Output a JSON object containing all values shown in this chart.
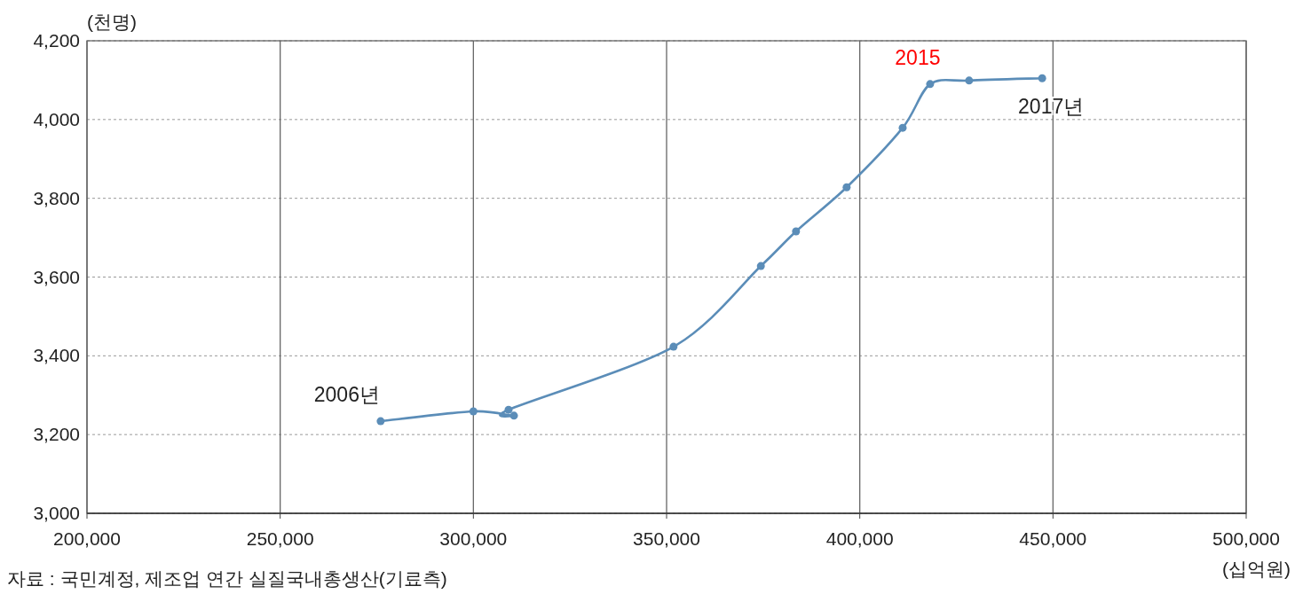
{
  "chart_data": {
    "type": "line",
    "ylabel": "(천명)",
    "xlabel": "(십억원)",
    "x": [
      276000,
      300000,
      310500,
      309100,
      351800,
      374400,
      383500,
      396600,
      411100,
      418200,
      428300,
      447200
    ],
    "series": [
      {
        "color": "#5b8db8",
        "values": [
          3234,
          3259,
          3248,
          3263,
          3423,
          3628,
          3716,
          3828,
          3979,
          4090,
          4099,
          4105
        ]
      }
    ],
    "xlim": [
      200000,
      500000
    ],
    "xticks": [
      {
        "value": 200000,
        "label": "200,000"
      },
      {
        "value": 250000,
        "label": "250,000"
      },
      {
        "value": 300000,
        "label": "300,000"
      },
      {
        "value": 350000,
        "label": "350,000"
      },
      {
        "value": 400000,
        "label": "400,000"
      },
      {
        "value": 450000,
        "label": "450,000"
      },
      {
        "value": 500000,
        "label": "500,000"
      }
    ],
    "ylim": [
      3000,
      4200
    ],
    "yticks": [
      {
        "value": 3000,
        "label": "3,000"
      },
      {
        "value": 3200,
        "label": "3,200"
      },
      {
        "value": 3400,
        "label": "3,400"
      },
      {
        "value": 3600,
        "label": "3,600"
      },
      {
        "value": 3800,
        "label": "3,800"
      },
      {
        "value": 4000,
        "label": "4,000"
      },
      {
        "value": 4200,
        "label": "4,200"
      }
    ],
    "grid": true,
    "marker": "circle",
    "line_style": "solid",
    "annotations": [
      {
        "text": "2006년",
        "x": 276000,
        "y": 3234
      },
      {
        "text": "2015",
        "x": 418200,
        "y": 4090
      },
      {
        "text": "2017년",
        "x": 447200,
        "y": 4105
      },
      "자료 : 국민계정, 제조업 연간 실질국내총생산(기료측)"
    ]
  }
}
